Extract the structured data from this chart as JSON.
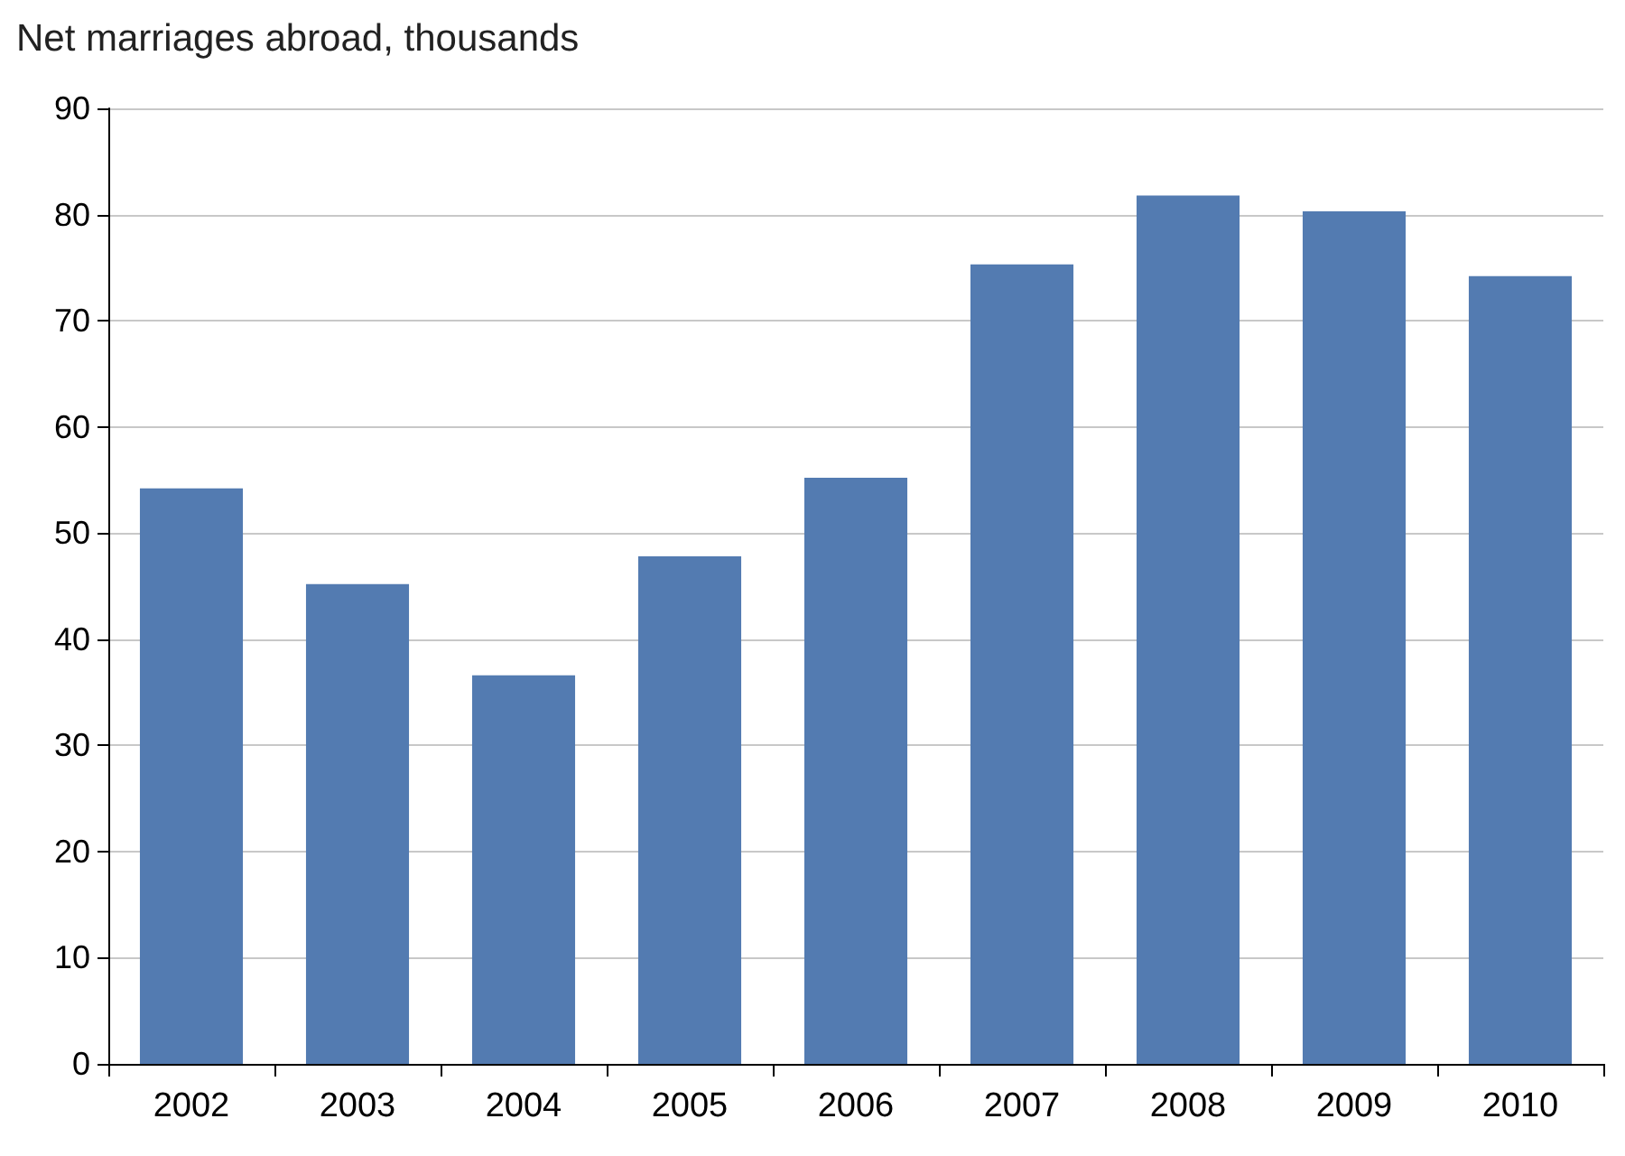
{
  "chart_data": {
    "type": "bar",
    "title": "Net marriages abroad, thousands",
    "categories": [
      "2002",
      "2003",
      "2004",
      "2005",
      "2006",
      "2007",
      "2008",
      "2009",
      "2010"
    ],
    "values": [
      54.2,
      45.2,
      36.6,
      47.8,
      55.2,
      75.3,
      81.8,
      80.3,
      74.2
    ],
    "color": "#537bb1",
    "ylim": [
      0,
      90
    ],
    "yticks": [
      0,
      10,
      20,
      30,
      40,
      50,
      60,
      70,
      80,
      90
    ],
    "grid": "y"
  }
}
